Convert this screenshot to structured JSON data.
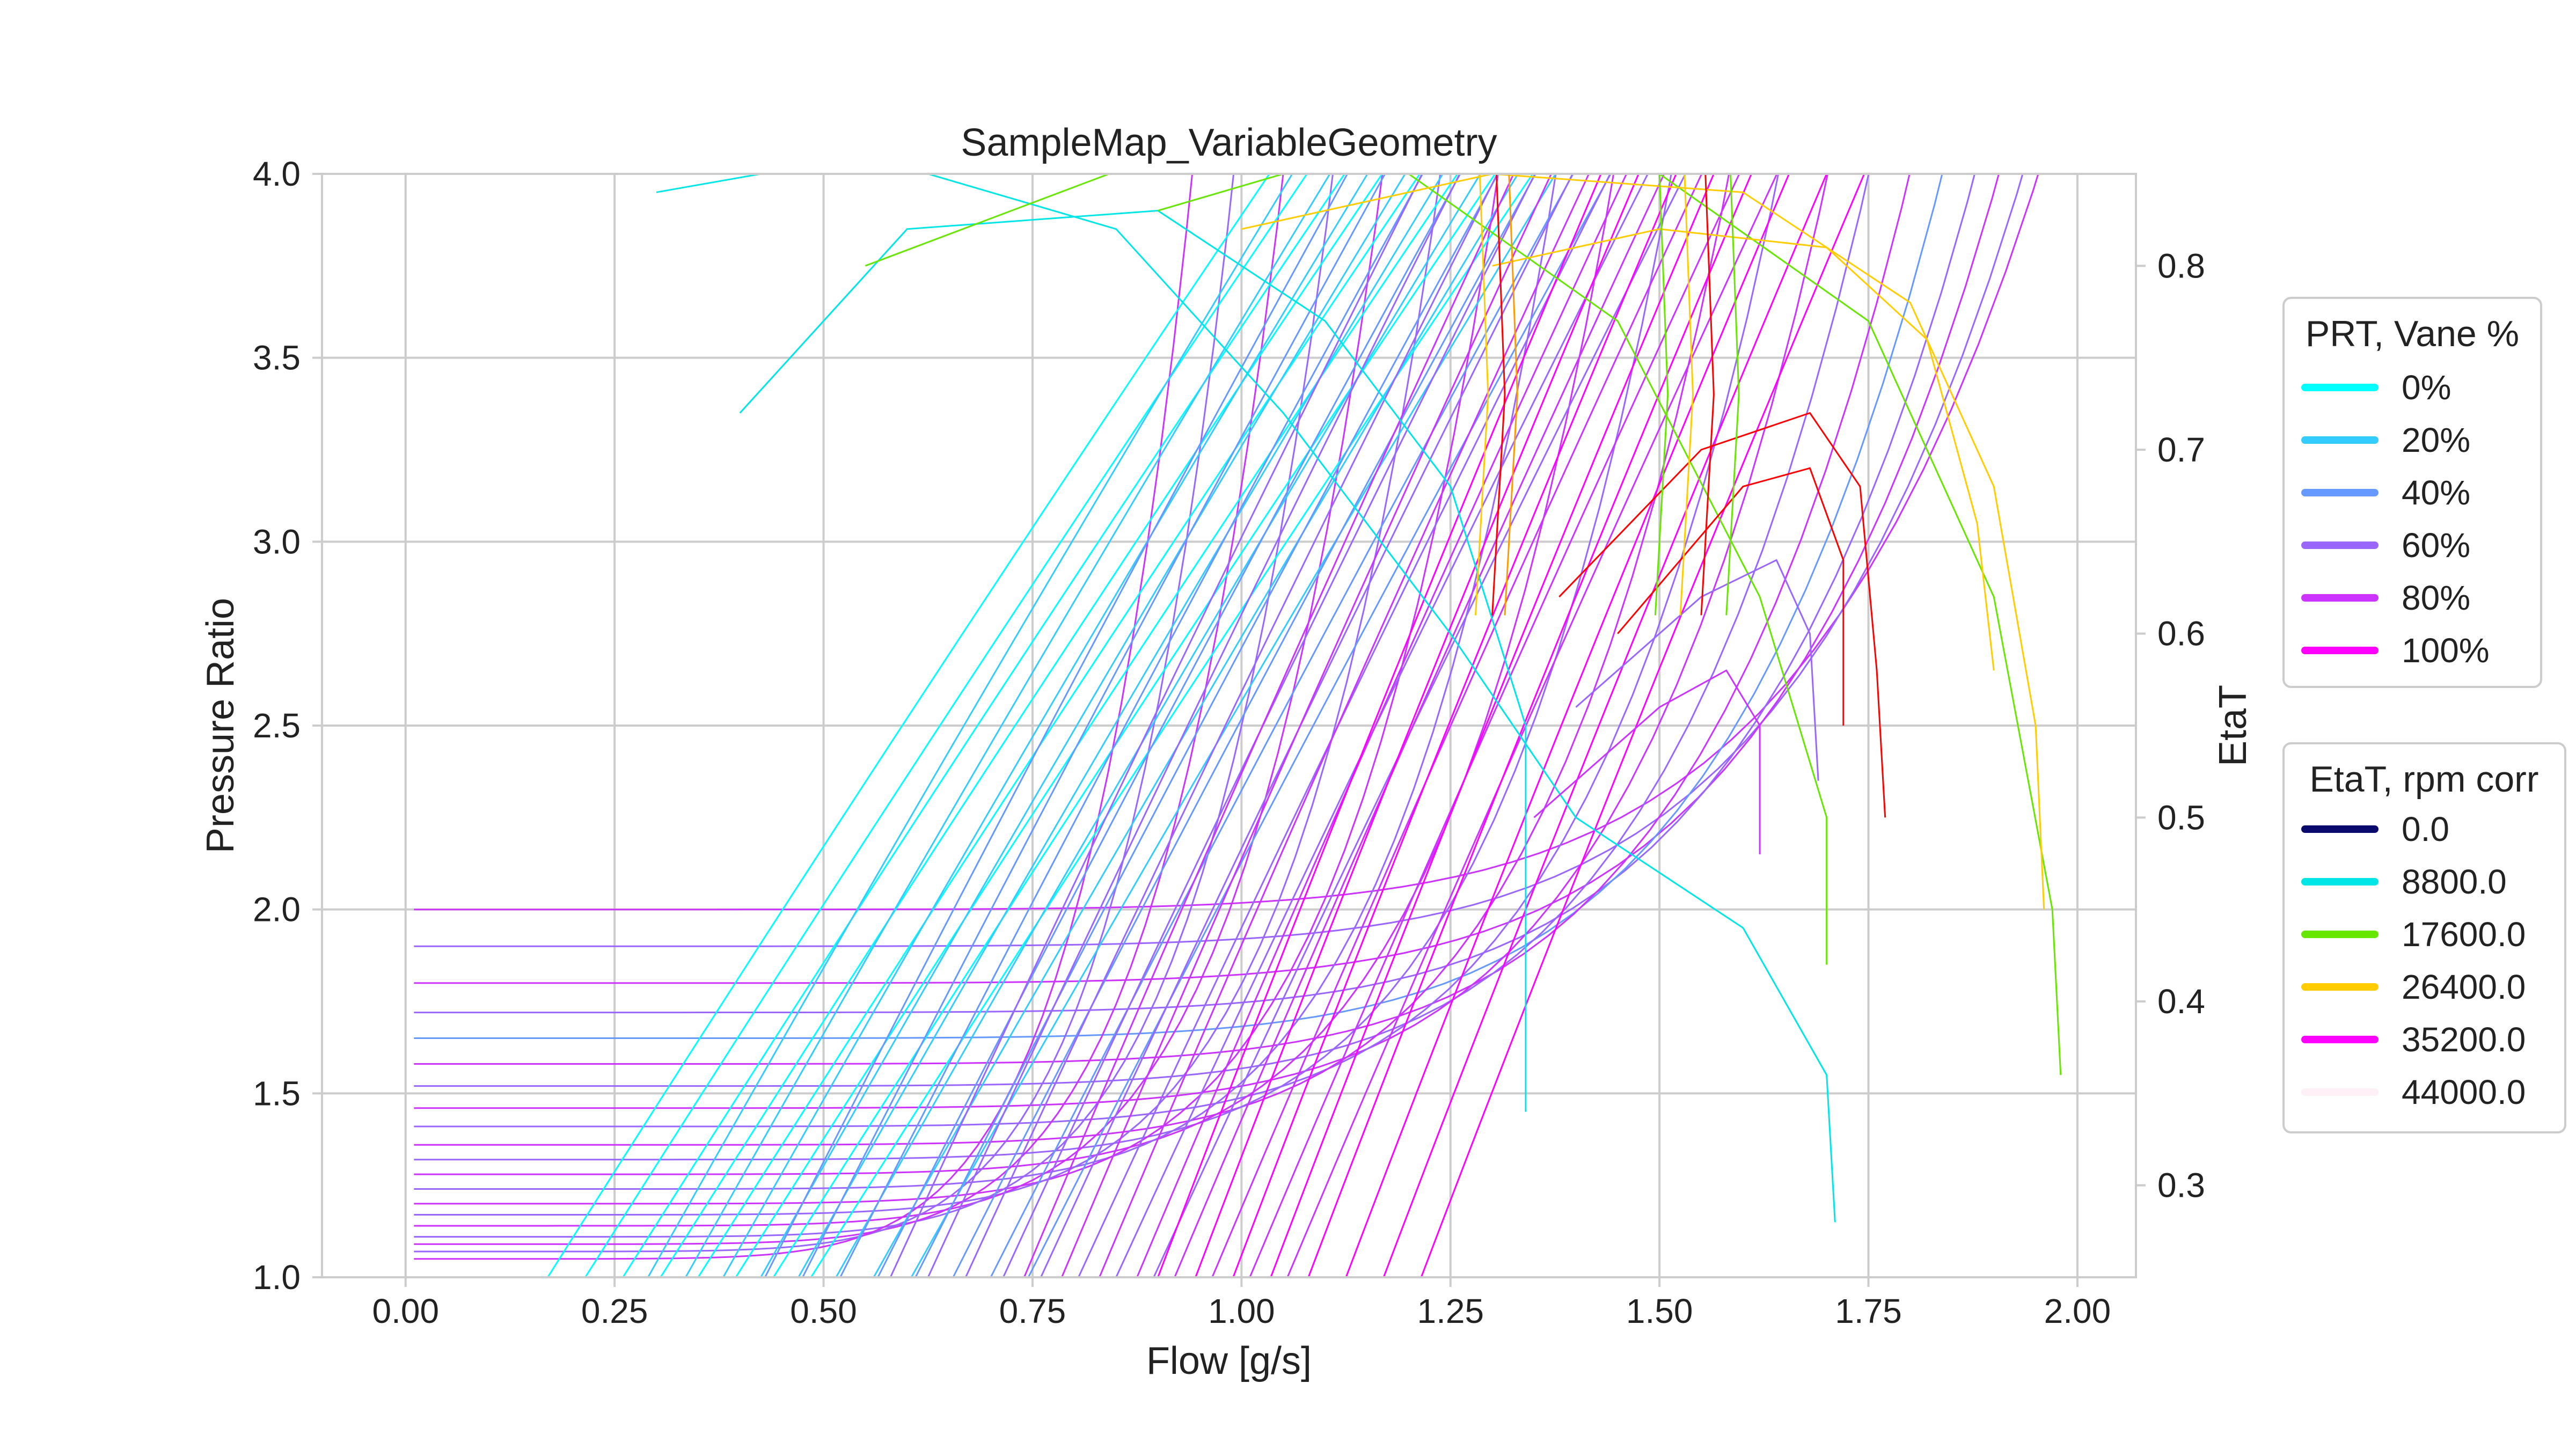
{
  "chart_data": {
    "type": "line",
    "title": "SampleMap_VariableGeometry",
    "xlabel": "Flow [g/s]",
    "ylabel": "Pressure Ratio",
    "y2label": "EtaT",
    "xlim": [
      -0.1,
      2.07
    ],
    "ylim": [
      1.0,
      4.0
    ],
    "y2lim": [
      0.25,
      0.85
    ],
    "grid": true,
    "x_ticks": [
      "0.00",
      "0.25",
      "0.50",
      "0.75",
      "1.00",
      "1.25",
      "1.50",
      "1.75",
      "2.00"
    ],
    "y_ticks": [
      "1.0",
      "1.5",
      "2.0",
      "2.5",
      "3.0",
      "3.5",
      "4.0"
    ],
    "y2_ticks": [
      "0.3",
      "0.4",
      "0.5",
      "0.6",
      "0.7",
      "0.8"
    ],
    "legend_prt": {
      "title": "PRT, Vane %",
      "placement": "right",
      "entries": [
        {
          "label": "0%",
          "color": "#00ffff"
        },
        {
          "label": "20%",
          "color": "#33ccff"
        },
        {
          "label": "40%",
          "color": "#6699ff"
        },
        {
          "label": "60%",
          "color": "#9966ff"
        },
        {
          "label": "80%",
          "color": "#cc33ff"
        },
        {
          "label": "100%",
          "color": "#ff00ff"
        }
      ]
    },
    "legend_eta": {
      "title": "EtaT, rpm corr",
      "placement": "right",
      "entries": [
        {
          "label": "0.0",
          "color": "#0a0a6e"
        },
        {
          "label": "8800.0",
          "color": "#00e6e6"
        },
        {
          "label": "17600.0",
          "color": "#66e600"
        },
        {
          "label": "26400.0",
          "color": "#ffcc00"
        },
        {
          "label": "35200.0",
          "color": "#ff00ff"
        },
        {
          "label": "44000.0",
          "color": "#fff0f8"
        }
      ]
    },
    "speed_lines": {
      "vane_colors": [
        "#00ffff",
        "#33ccff",
        "#6699ff",
        "#9966ff",
        "#cc33ff",
        "#ff00ff"
      ],
      "base_flow": [
        0.17,
        0.29,
        0.43,
        0.58,
        0.74,
        0.9
      ],
      "flow_step": 0.045,
      "lines_per_vane": 8,
      "slope": [
        1.2,
        1.35,
        1.5,
        1.65,
        1.8,
        2.0
      ]
    },
    "low_pr_lines": {
      "pr_start": [
        2.0,
        1.9,
        1.8,
        1.72,
        1.65,
        1.58,
        1.52,
        1.46,
        1.41,
        1.36,
        1.32,
        1.28,
        1.24,
        1.2,
        1.17,
        1.14,
        1.11,
        1.09,
        1.07,
        1.05
      ],
      "flow_end": [
        1.98,
        1.96,
        1.93,
        1.9,
        1.86,
        1.82,
        1.77,
        1.72,
        1.66,
        1.6,
        1.53,
        1.46,
        1.39,
        1.32,
        1.25,
        1.18,
        1.12,
        1.06,
        1.0,
        0.95
      ],
      "colors": [
        "#cc33ff",
        "#9966ff",
        "#cc33ff",
        "#9966ff",
        "#6699ff",
        "#cc33ff",
        "#9966ff",
        "#cc33ff",
        "#9966ff",
        "#cc33ff",
        "#9966ff",
        "#cc33ff",
        "#9966ff",
        "#cc33ff",
        "#9966ff",
        "#cc33ff",
        "#9966ff",
        "#cc33ff",
        "#9966ff",
        "#cc33ff"
      ]
    },
    "efficiency_curves": [
      {
        "color": "#00e6e6",
        "points": [
          [
            0.4,
            0.72
          ],
          [
            0.6,
            0.82
          ],
          [
            0.9,
            0.83
          ],
          [
            1.1,
            0.77
          ],
          [
            1.25,
            0.68
          ],
          [
            1.34,
            0.55
          ],
          [
            1.34,
            0.4
          ],
          [
            1.34,
            0.34
          ]
        ]
      },
      {
        "color": "#00e6e6",
        "points": [
          [
            0.3,
            0.84
          ],
          [
            0.55,
            0.86
          ],
          [
            0.85,
            0.82
          ],
          [
            1.05,
            0.72
          ],
          [
            1.25,
            0.6
          ],
          [
            1.4,
            0.5
          ],
          [
            1.6,
            0.44
          ],
          [
            1.7,
            0.36
          ],
          [
            1.71,
            0.28
          ]
        ]
      },
      {
        "color": "#66e600",
        "points": [
          [
            0.55,
            0.8
          ],
          [
            0.9,
            0.86
          ],
          [
            1.2,
            0.85
          ],
          [
            1.45,
            0.77
          ],
          [
            1.62,
            0.62
          ],
          [
            1.7,
            0.5
          ],
          [
            1.7,
            0.42
          ]
        ]
      },
      {
        "color": "#66e600",
        "points": [
          [
            0.9,
            0.83
          ],
          [
            1.2,
            0.87
          ],
          [
            1.5,
            0.85
          ],
          [
            1.75,
            0.77
          ],
          [
            1.9,
            0.62
          ],
          [
            1.97,
            0.45
          ],
          [
            1.98,
            0.36
          ]
        ]
      },
      {
        "color": "#ffcc00",
        "points": [
          [
            1.0,
            0.82
          ],
          [
            1.3,
            0.85
          ],
          [
            1.6,
            0.84
          ],
          [
            1.8,
            0.78
          ],
          [
            1.9,
            0.68
          ],
          [
            1.95,
            0.55
          ],
          [
            1.96,
            0.45
          ]
        ]
      },
      {
        "color": "#ffcc00",
        "points": [
          [
            1.3,
            0.8
          ],
          [
            1.5,
            0.82
          ],
          [
            1.7,
            0.81
          ],
          [
            1.82,
            0.76
          ],
          [
            1.88,
            0.66
          ],
          [
            1.9,
            0.58
          ]
        ]
      },
      {
        "color": "#ff0000",
        "points": [
          [
            1.38,
            0.62
          ],
          [
            1.55,
            0.7
          ],
          [
            1.68,
            0.72
          ],
          [
            1.74,
            0.68
          ],
          [
            1.76,
            0.58
          ],
          [
            1.77,
            0.5
          ]
        ]
      },
      {
        "color": "#ff0000",
        "points": [
          [
            1.45,
            0.6
          ],
          [
            1.6,
            0.68
          ],
          [
            1.68,
            0.69
          ],
          [
            1.72,
            0.64
          ],
          [
            1.72,
            0.55
          ]
        ]
      },
      {
        "color": "#9966ff",
        "points": [
          [
            1.4,
            0.56
          ],
          [
            1.55,
            0.62
          ],
          [
            1.64,
            0.64
          ],
          [
            1.68,
            0.6
          ],
          [
            1.69,
            0.52
          ]
        ]
      },
      {
        "color": "#cc33ff",
        "points": [
          [
            1.35,
            0.5
          ],
          [
            1.5,
            0.56
          ],
          [
            1.58,
            0.58
          ],
          [
            1.62,
            0.55
          ],
          [
            1.62,
            0.48
          ]
        ]
      }
    ],
    "vertical_lines": [
      {
        "color": "#ffcc00",
        "flow": 1.285
      },
      {
        "color": "#ff0000",
        "flow": 1.305
      },
      {
        "color": "#ff9900",
        "flow": 1.32
      },
      {
        "color": "#66e600",
        "flow": 1.5
      },
      {
        "color": "#ffcc00",
        "flow": 1.53
      },
      {
        "color": "#ff0000",
        "flow": 1.555
      },
      {
        "color": "#66e600",
        "flow": 1.585
      }
    ]
  }
}
